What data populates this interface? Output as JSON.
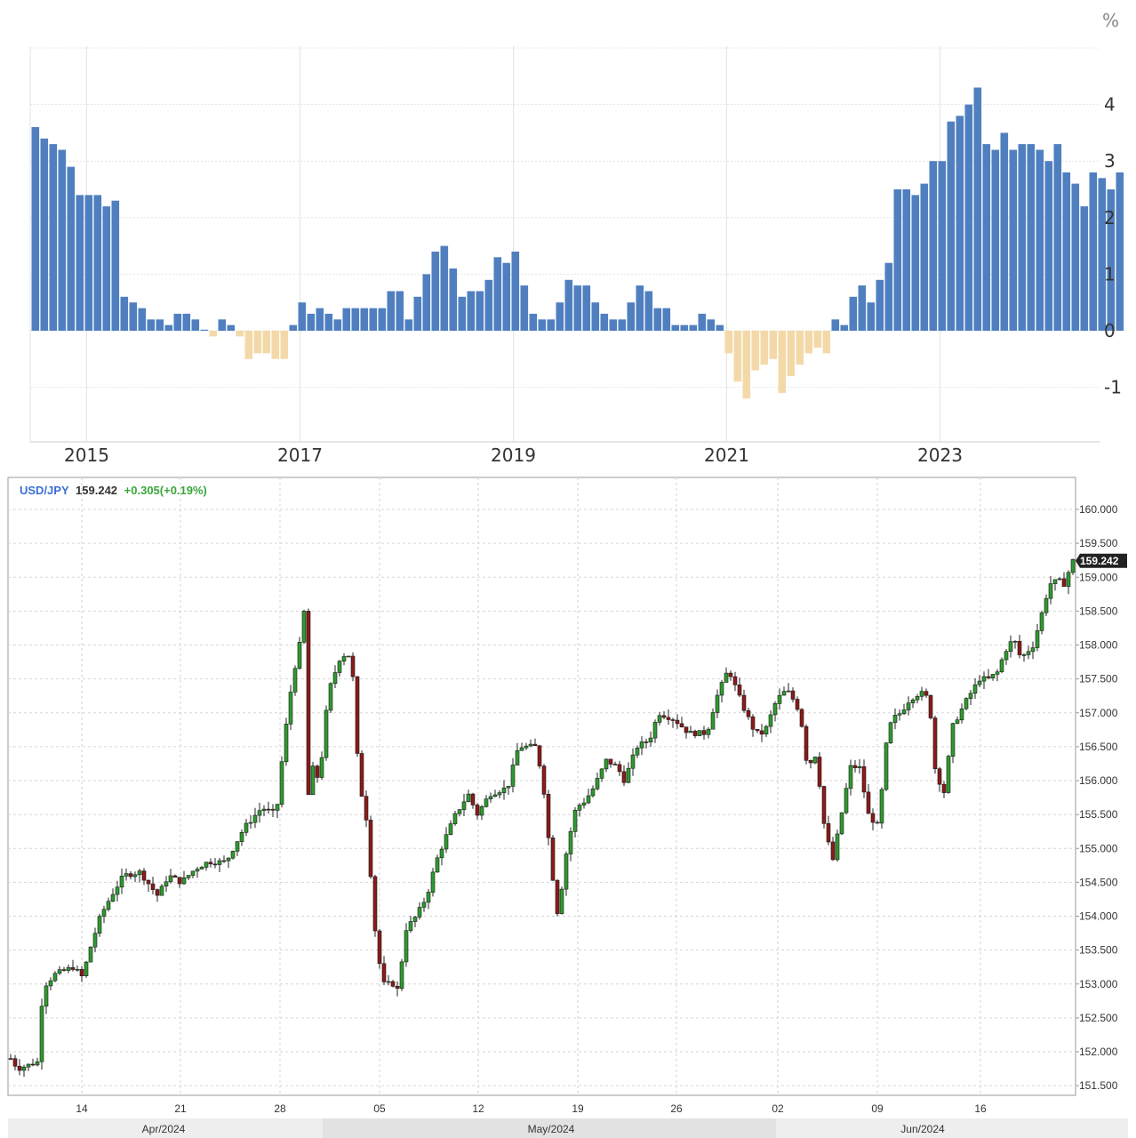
{
  "chart_data": [
    {
      "type": "bar",
      "unit_label": "%",
      "x_tick_labels": [
        "2015",
        "2017",
        "2019",
        "2021",
        "2023"
      ],
      "y_tick_labels": [
        "-1",
        "0",
        "1",
        "2",
        "3",
        "4"
      ],
      "ylim": [
        -2,
        5
      ],
      "grid": true,
      "start": "2014-07",
      "frequency": "monthly",
      "positive_color": "#4f7fbf",
      "negative_color": "#f4d9a8",
      "values": [
        3.6,
        3.4,
        3.3,
        3.2,
        2.9,
        2.4,
        2.4,
        2.4,
        2.2,
        2.3,
        0.6,
        0.5,
        0.4,
        0.2,
        0.2,
        0.1,
        0.3,
        0.3,
        0.2,
        0.0,
        -0.1,
        0.2,
        0.1,
        -0.1,
        -0.5,
        -0.4,
        -0.4,
        -0.5,
        -0.5,
        0.1,
        0.5,
        0.3,
        0.4,
        0.3,
        0.2,
        0.4,
        0.4,
        0.4,
        0.4,
        0.4,
        0.7,
        0.7,
        0.2,
        0.6,
        1.0,
        1.4,
        1.5,
        1.1,
        0.6,
        0.7,
        0.7,
        0.9,
        1.3,
        1.2,
        1.4,
        0.8,
        0.3,
        0.2,
        0.2,
        0.5,
        0.9,
        0.8,
        0.8,
        0.5,
        0.3,
        0.2,
        0.2,
        0.5,
        0.8,
        0.7,
        0.4,
        0.4,
        0.1,
        0.1,
        0.1,
        0.3,
        0.2,
        0.1,
        -0.4,
        -0.9,
        -1.2,
        -0.7,
        -0.6,
        -0.5,
        -1.1,
        -0.8,
        -0.6,
        -0.4,
        -0.3,
        -0.4,
        0.2,
        0.1,
        0.6,
        0.8,
        0.5,
        0.9,
        1.2,
        2.5,
        2.5,
        2.4,
        2.6,
        3.0,
        3.0,
        3.7,
        3.8,
        4.0,
        4.3,
        3.3,
        3.2,
        3.5,
        3.2,
        3.3,
        3.3,
        3.2,
        3.0,
        3.3,
        2.8,
        2.6,
        2.2,
        2.8,
        2.7,
        2.5,
        2.8
      ]
    },
    {
      "type": "candlestick",
      "symbol": "USD/JPY",
      "last": "159.242",
      "change": "+0.305(+0.19%)",
      "price_tag": "159.242",
      "ylim": [
        151.3,
        160.3
      ],
      "y_tick_labels": [
        "151.500",
        "152.000",
        "152.500",
        "153.000",
        "153.500",
        "154.000",
        "154.500",
        "155.000",
        "155.500",
        "156.000",
        "156.500",
        "157.000",
        "157.500",
        "158.000",
        "158.500",
        "159.000",
        "159.500",
        "160.000"
      ],
      "x_tick_labels": [
        "14",
        "21",
        "28",
        "05",
        "12",
        "19",
        "26",
        "02",
        "09",
        "16"
      ],
      "month_labels": [
        "Apr/2024",
        "May/2024",
        "Jun/2024"
      ],
      "up_color": "#2e9a2e",
      "down_color": "#8b1a1a",
      "path_close": [
        [
          0.0,
          151.9
        ],
        [
          0.4,
          151.75
        ],
        [
          1.5,
          151.85
        ],
        [
          1.8,
          152.95
        ],
        [
          2.5,
          153.15
        ],
        [
          3.5,
          153.25
        ],
        [
          4.0,
          153.1
        ],
        [
          4.4,
          153.5
        ],
        [
          5.0,
          154.0
        ],
        [
          5.6,
          154.3
        ],
        [
          6.3,
          154.6
        ],
        [
          7.2,
          154.65
        ],
        [
          8.2,
          154.3
        ],
        [
          8.8,
          154.6
        ],
        [
          9.5,
          154.5
        ],
        [
          10.3,
          154.7
        ],
        [
          11.0,
          154.8
        ],
        [
          12.0,
          154.8
        ],
        [
          13.0,
          155.3
        ],
        [
          14.0,
          155.6
        ],
        [
          14.8,
          155.5
        ],
        [
          15.2,
          156.5
        ],
        [
          15.7,
          157.5
        ],
        [
          16.1,
          158.0
        ],
        [
          16.3,
          159.4
        ],
        [
          16.5,
          155.6
        ],
        [
          16.8,
          156.2
        ],
        [
          17.2,
          156.0
        ],
        [
          17.7,
          157.3
        ],
        [
          18.4,
          157.85
        ],
        [
          19.0,
          157.85
        ],
        [
          19.4,
          156.0
        ],
        [
          19.8,
          155.5
        ],
        [
          20.4,
          153.5
        ],
        [
          20.8,
          153.0
        ],
        [
          21.3,
          153.0
        ],
        [
          21.6,
          152.9
        ],
        [
          22.0,
          153.8
        ],
        [
          22.6,
          154.0
        ],
        [
          23.2,
          154.3
        ],
        [
          23.7,
          154.8
        ],
        [
          24.3,
          155.2
        ],
        [
          24.8,
          155.5
        ],
        [
          25.5,
          155.8
        ],
        [
          26.0,
          155.5
        ],
        [
          26.7,
          155.8
        ],
        [
          27.7,
          155.9
        ],
        [
          28.3,
          156.5
        ],
        [
          29.3,
          156.5
        ],
        [
          29.7,
          155.9
        ],
        [
          30.1,
          154.8
        ],
        [
          30.5,
          154.0
        ],
        [
          31.0,
          155.0
        ],
        [
          31.5,
          155.6
        ],
        [
          32.0,
          155.7
        ],
        [
          32.5,
          155.9
        ],
        [
          33.2,
          156.3
        ],
        [
          33.8,
          156.2
        ],
        [
          34.2,
          156.0
        ],
        [
          34.9,
          156.5
        ],
        [
          35.6,
          156.6
        ],
        [
          36.1,
          157.0
        ],
        [
          37.0,
          156.9
        ],
        [
          37.8,
          156.7
        ],
        [
          38.3,
          156.7
        ],
        [
          38.8,
          156.7
        ],
        [
          39.3,
          157.2
        ],
        [
          40.0,
          157.65
        ],
        [
          40.8,
          157.1
        ],
        [
          41.5,
          156.7
        ],
        [
          42.0,
          156.7
        ],
        [
          42.7,
          157.2
        ],
        [
          43.1,
          157.3
        ],
        [
          43.4,
          157.3
        ],
        [
          44.0,
          157.0
        ],
        [
          44.4,
          156.2
        ],
        [
          44.9,
          156.4
        ],
        [
          45.3,
          155.4
        ],
        [
          45.8,
          154.8
        ],
        [
          46.3,
          155.5
        ],
        [
          46.8,
          156.2
        ],
        [
          47.3,
          156.2
        ],
        [
          47.8,
          155.5
        ],
        [
          48.4,
          155.3
        ],
        [
          48.7,
          156.4
        ],
        [
          49.1,
          156.9
        ],
        [
          49.6,
          157.0
        ],
        [
          50.1,
          157.2
        ],
        [
          50.7,
          157.3
        ],
        [
          51.2,
          157.2
        ],
        [
          51.5,
          156.2
        ],
        [
          52.0,
          155.8
        ],
        [
          52.5,
          156.8
        ],
        [
          52.9,
          157.0
        ],
        [
          53.3,
          157.2
        ],
        [
          54.0,
          157.5
        ],
        [
          54.5,
          157.5
        ],
        [
          55.0,
          157.6
        ],
        [
          55.4,
          157.9
        ],
        [
          55.9,
          158.1
        ],
        [
          56.3,
          157.8
        ],
        [
          57.0,
          158.0
        ],
        [
          57.5,
          158.5
        ],
        [
          57.9,
          158.9
        ],
        [
          58.4,
          158.95
        ],
        [
          58.7,
          158.9
        ],
        [
          59.2,
          159.242
        ]
      ]
    }
  ]
}
